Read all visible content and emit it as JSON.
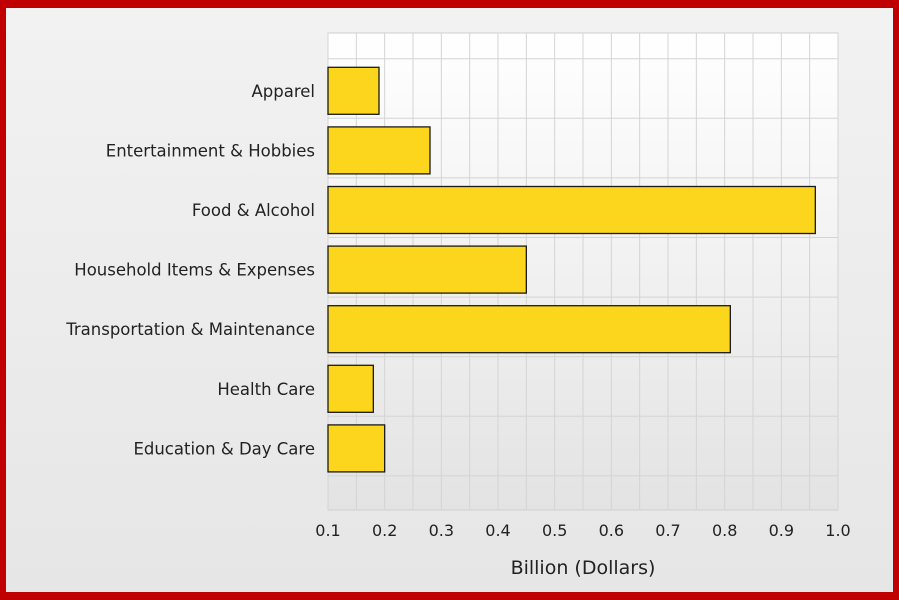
{
  "chart_data": {
    "type": "bar",
    "orientation": "horizontal",
    "categories": [
      "Apparel",
      "Entertainment & Hobbies",
      "Food & Alcohol",
      "Household Items & Expenses",
      "Transportation & Maintenance",
      "Health Care",
      "Education & Day Care"
    ],
    "values": [
      0.19,
      0.28,
      0.96,
      0.45,
      0.81,
      0.18,
      0.2
    ],
    "xlabel": "Billion (Dollars)",
    "ylabel": "",
    "xlim": [
      0.1,
      1.0
    ],
    "xticks": [
      "0.1",
      "0.2",
      "0.3",
      "0.4",
      "0.5",
      "0.6",
      "0.7",
      "0.8",
      "0.9",
      "1.0"
    ],
    "grid": true,
    "bar_color": "#fcd61c",
    "frame_color": "#c00000"
  }
}
